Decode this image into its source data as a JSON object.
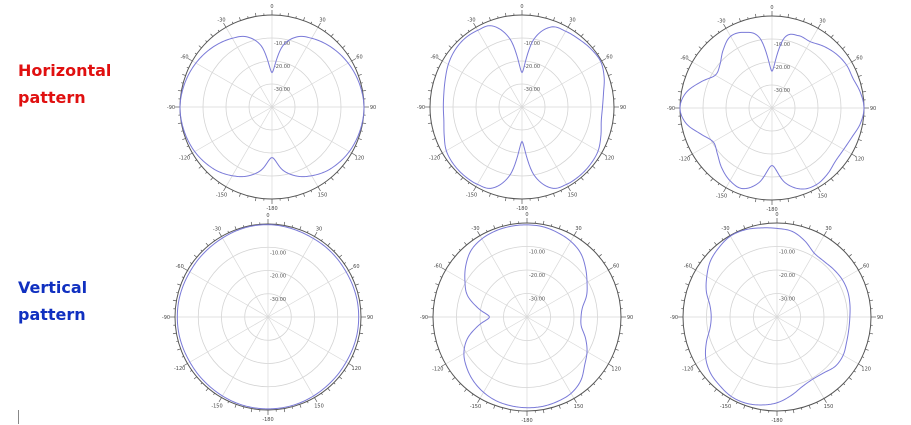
{
  "labels": {
    "horizontal": [
      "Horizontal",
      "pattern"
    ],
    "vertical": [
      "Vertical",
      "pattern"
    ],
    "horizontal_color": "#e01010",
    "vertical_color": "#1030c0"
  },
  "curve_color": "#7a7ad8",
  "chart_data": [
    {
      "type": "polar",
      "row": "horizontal",
      "col": 1,
      "angle_labels": [
        "0",
        "30",
        "60",
        "90",
        "120",
        "150",
        "-180",
        "-150",
        "-120",
        "-90",
        "-60",
        "-30"
      ],
      "ring_labels": [
        "-10.00",
        "-20.00",
        "-30.00"
      ],
      "r_range": [
        -40,
        0
      ],
      "theta_step_deg": 10,
      "r": [
        -25,
        -13,
        -7.5,
        -5.5,
        -4,
        -2.8,
        -1.8,
        -1,
        -0.4,
        0,
        -0.2,
        -0.6,
        -1.2,
        -2.2,
        -3.5,
        -5.5,
        -8,
        -12,
        -18,
        -12,
        -8,
        -5.5,
        -3.5,
        -2.2,
        -1.2,
        -0.6,
        -0.2,
        0,
        -0.4,
        -1,
        -1.8,
        -2.8,
        -4,
        -5.5,
        -7.5,
        -13
      ]
    },
    {
      "type": "polar",
      "row": "horizontal",
      "col": 2,
      "angle_labels": [
        "0",
        "30",
        "60",
        "90",
        "120",
        "150",
        "-180",
        "-150",
        "-120",
        "-90",
        "-60",
        "-30"
      ],
      "ring_labels": [
        "-10.00",
        "-20.00",
        "-30.00"
      ],
      "r_range": [
        -40,
        0
      ],
      "theta_step_deg": 10,
      "r": [
        -25,
        -10,
        -3,
        -2,
        -1.5,
        -0.8,
        -0.5,
        -2,
        -4,
        -5,
        -5,
        -3.5,
        -1.8,
        -1.2,
        -1,
        -1.2,
        -2.5,
        -10,
        -25,
        -10,
        -2.5,
        -1.2,
        -1,
        -1.2,
        -2,
        -4,
        -5.5,
        -5.8,
        -5.5,
        -4.5,
        -3,
        -1.8,
        -1.2,
        -1.5,
        -2.5,
        -10
      ]
    },
    {
      "type": "polar",
      "row": "horizontal",
      "col": 3,
      "angle_labels": [
        "0",
        "30",
        "60",
        "90",
        "120",
        "150",
        "-180",
        "-150",
        "-120",
        "-90",
        "-60",
        "-30"
      ],
      "ring_labels": [
        "-10.00",
        "-20.00",
        "-30.00"
      ],
      "r_range": [
        -40,
        0
      ],
      "theta_step_deg": 10,
      "r": [
        -24,
        -9,
        -6.5,
        -6.7,
        -5,
        -3.5,
        -2.6,
        -2.5,
        -1,
        0,
        -1,
        -3,
        -4,
        -4,
        -2.5,
        -1.5,
        -2.5,
        -7,
        -15,
        -7,
        -2.7,
        -3.5,
        -6,
        -9,
        -10.5,
        -7,
        -2,
        0,
        -2,
        -7,
        -11.5,
        -10.5,
        -7,
        -4,
        -5,
        -9
      ]
    },
    {
      "type": "polar",
      "row": "vertical",
      "col": 1,
      "angle_labels": [
        "0",
        "30",
        "60",
        "90",
        "120",
        "150",
        "-180",
        "-150",
        "-120",
        "-90",
        "-60",
        "-30"
      ],
      "ring_labels": [
        "-10.00",
        "-20.00",
        "-30.00"
      ],
      "r_range": [
        -40,
        0
      ],
      "theta_step_deg": 10,
      "r": [
        -0.3,
        -0.5,
        -0.8,
        -1,
        -1,
        -1.1,
        -1.2,
        -1.1,
        -1,
        -1,
        -1,
        -1.1,
        -1.2,
        -1.1,
        -1,
        -0.8,
        -0.6,
        -0.5,
        -0.5,
        -0.5,
        -0.6,
        -0.8,
        -1,
        -1.1,
        -1.2,
        -1.1,
        -1,
        -1,
        -1,
        -1.1,
        -1.2,
        -1.1,
        -1,
        -0.8,
        -0.5,
        -0.3
      ]
    },
    {
      "type": "polar",
      "row": "vertical",
      "col": 2,
      "angle_labels": [
        "0",
        "30",
        "60",
        "90",
        "120",
        "150",
        "-180",
        "-150",
        "-120",
        "-90",
        "-60",
        "-30"
      ],
      "ring_labels": [
        "-10.00",
        "-20.00",
        "-30.00"
      ],
      "r_range": [
        -40,
        0
      ],
      "theta_step_deg": 10,
      "r": [
        -0.8,
        -1,
        -1.8,
        -2.8,
        -4.5,
        -7.5,
        -10.5,
        -13,
        -16,
        -17,
        -16.5,
        -13.5,
        -10.5,
        -8,
        -4.5,
        -2.5,
        -1.8,
        -1.4,
        -1.4,
        -1.6,
        -2,
        -3,
        -4.5,
        -6.5,
        -9,
        -13,
        -19,
        -24,
        -19,
        -13,
        -9.5,
        -6,
        -3,
        -1.6,
        -1,
        -0.8
      ]
    },
    {
      "type": "polar",
      "row": "vertical",
      "col": 3,
      "angle_labels": [
        "0",
        "30",
        "60",
        "90",
        "120",
        "150",
        "-180",
        "-150",
        "-120",
        "-90",
        "-60",
        "-30"
      ],
      "ring_labels": [
        "-10.00",
        "-20.00",
        "-30.00"
      ],
      "r_range": [
        -40,
        0
      ],
      "theta_step_deg": 10,
      "r": [
        -2.3,
        -3,
        -5.5,
        -8.5,
        -9,
        -8.5,
        -8,
        -8,
        -8.5,
        -9,
        -9,
        -8.5,
        -7.5,
        -7.5,
        -9,
        -9.5,
        -8.5,
        -6,
        -3.5,
        -2,
        -1,
        -1,
        -2,
        -3,
        -5,
        -8,
        -11,
        -12,
        -11,
        -8,
        -5.5,
        -3,
        -1.5,
        -0.3,
        -0.5,
        -1.5
      ]
    }
  ]
}
